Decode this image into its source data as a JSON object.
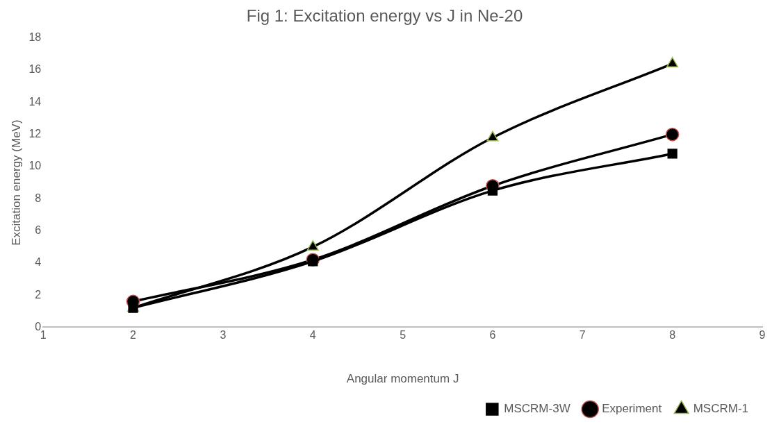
{
  "chart_data": {
    "type": "line",
    "title": "Fig 1: Excitation energy vs J in Ne-20",
    "xlabel": "Angular momentum J",
    "ylabel": "Excitation energy (MeV)",
    "x": [
      2,
      4,
      6,
      8
    ],
    "series": [
      {
        "name": "MSCRM-3W",
        "color": "#000000",
        "marker": "square",
        "values": [
          1.2,
          4.1,
          8.5,
          10.8
        ]
      },
      {
        "name": "Experiment",
        "color": "#000000",
        "marker": "circle",
        "values": [
          1.6,
          4.2,
          8.8,
          12.0
        ]
      },
      {
        "name": "MSCRM-1",
        "color": "#000000",
        "marker": "triangle",
        "values": [
          1.2,
          5.0,
          11.8,
          16.4
        ]
      }
    ],
    "xlim": [
      1,
      9
    ],
    "xticks": [
      1,
      2,
      3,
      4,
      5,
      6,
      7,
      8,
      9
    ],
    "ylim": [
      0,
      18
    ],
    "yticks": [
      0,
      2,
      4,
      6,
      8,
      10,
      12,
      14,
      16,
      18
    ],
    "grid": false,
    "legend": "bottom right",
    "line_style": "solid"
  }
}
